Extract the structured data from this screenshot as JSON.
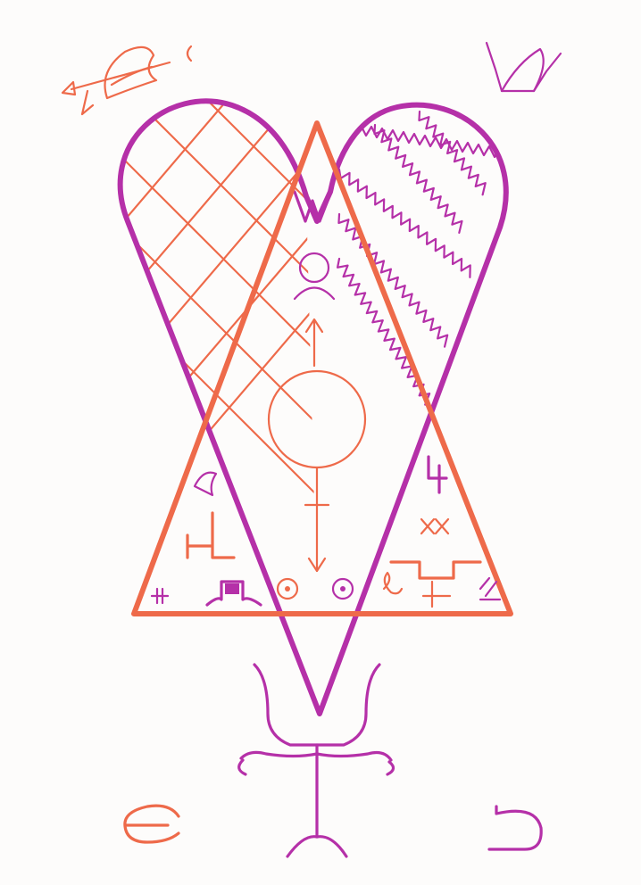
{
  "figure": {
    "colors": {
      "paper": "#fdfcfb",
      "orange": "#ee6a4a",
      "magenta": "#b530a8"
    },
    "icons": [
      "arrow-sigil-icon",
      "crescent-icon",
      "swallow-sigil-icon",
      "heart-shape-icon",
      "triangle-icon",
      "crosshatch-icon",
      "zigzag-icon",
      "moon-sigil-icon",
      "mars-venus-circle-icon",
      "sun-dot-icon",
      "trident-sigil-icon",
      "euro-like-glyph-icon",
      "hook-glyph-icon"
    ]
  }
}
